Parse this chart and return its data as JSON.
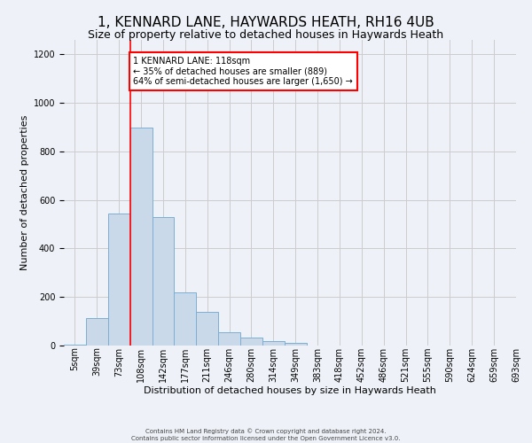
{
  "title": "1, KENNARD LANE, HAYWARDS HEATH, RH16 4UB",
  "subtitle": "Size of property relative to detached houses in Haywards Heath",
  "xlabel": "Distribution of detached houses by size in Haywards Heath",
  "ylabel": "Number of detached properties",
  "footer_line1": "Contains HM Land Registry data © Crown copyright and database right 2024.",
  "footer_line2": "Contains public sector information licensed under the Open Government Licence v3.0.",
  "bar_values": [
    5,
    115,
    545,
    900,
    530,
    220,
    140,
    55,
    32,
    20,
    10,
    0,
    0,
    0,
    0,
    0,
    0,
    0,
    0,
    0
  ],
  "bin_labels": [
    "5sqm",
    "39sqm",
    "73sqm",
    "108sqm",
    "142sqm",
    "177sqm",
    "211sqm",
    "246sqm",
    "280sqm",
    "314sqm",
    "349sqm",
    "383sqm",
    "418sqm",
    "452sqm",
    "486sqm",
    "521sqm",
    "555sqm",
    "590sqm",
    "624sqm",
    "659sqm",
    "693sqm"
  ],
  "bar_color": "#c9d9ea",
  "bar_edge_color": "#7bafd4",
  "vline_color": "red",
  "annotation_text": "1 KENNARD LANE: 118sqm\n← 35% of detached houses are smaller (889)\n64% of semi-detached houses are larger (1,650) →",
  "annotation_box_color": "white",
  "annotation_box_edgecolor": "red",
  "ylim": [
    0,
    1260
  ],
  "yticks": [
    0,
    200,
    400,
    600,
    800,
    1000,
    1200
  ],
  "grid_color": "#cccccc",
  "background_color": "#eef2f8",
  "title_fontsize": 11,
  "subtitle_fontsize": 9,
  "xlabel_fontsize": 8,
  "ylabel_fontsize": 8,
  "tick_fontsize": 7,
  "footer_fontsize": 5
}
